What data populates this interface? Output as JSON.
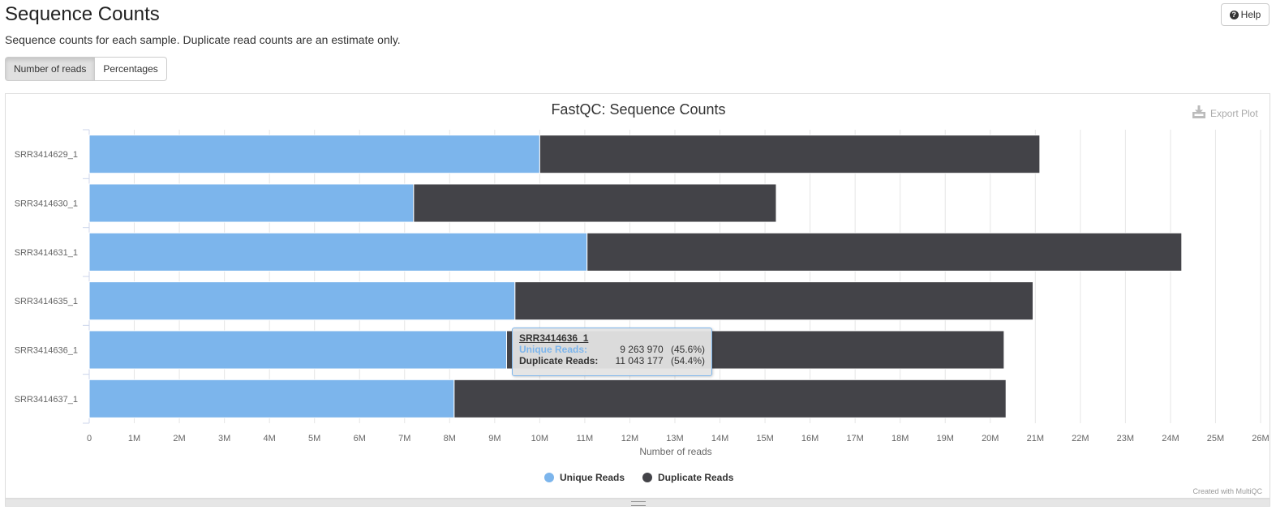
{
  "header": {
    "title": "Sequence Counts",
    "help_label": "Help",
    "description": "Sequence counts for each sample. Duplicate read counts are an estimate only."
  },
  "toggle": {
    "buttons": [
      "Number of reads",
      "Percentages"
    ],
    "active": "Number of reads"
  },
  "export_label": "Export Plot",
  "credit": "Created with MultiQC",
  "tooltip": {
    "sample": "SRR3414636_1",
    "rows": [
      {
        "name": "Unique Reads:",
        "value": "9 263 970",
        "pct": "(45.6%)",
        "color": "#7cb5ec"
      },
      {
        "name": "Duplicate Reads:",
        "value": "11 043 177",
        "pct": "(54.4%)",
        "color": "#333333"
      }
    ]
  },
  "chart_data": {
    "type": "bar",
    "orientation": "horizontal",
    "stacked": true,
    "title": "FastQC: Sequence Counts",
    "xlabel": "Number of reads",
    "ylabel": "",
    "xlim": [
      0,
      26000000
    ],
    "x_ticks": [
      "0",
      "1M",
      "2M",
      "3M",
      "4M",
      "5M",
      "6M",
      "7M",
      "8M",
      "9M",
      "10M",
      "11M",
      "12M",
      "13M",
      "14M",
      "15M",
      "16M",
      "17M",
      "18M",
      "19M",
      "20M",
      "21M",
      "22M",
      "23M",
      "24M",
      "25M",
      "26M"
    ],
    "grid": true,
    "legend_position": "bottom-center",
    "categories": [
      "SRR3414629_1",
      "SRR3414630_1",
      "SRR3414631_1",
      "SRR3414635_1",
      "SRR3414636_1",
      "SRR3414637_1"
    ],
    "series": [
      {
        "name": "Unique Reads",
        "color": "#7cb5ec",
        "values": [
          10000000,
          7200000,
          11050000,
          9450000,
          9263970,
          8100000
        ]
      },
      {
        "name": "Duplicate Reads",
        "color": "#434348",
        "values": [
          11100000,
          8050000,
          13200000,
          11500000,
          11043177,
          12250000
        ]
      }
    ]
  }
}
